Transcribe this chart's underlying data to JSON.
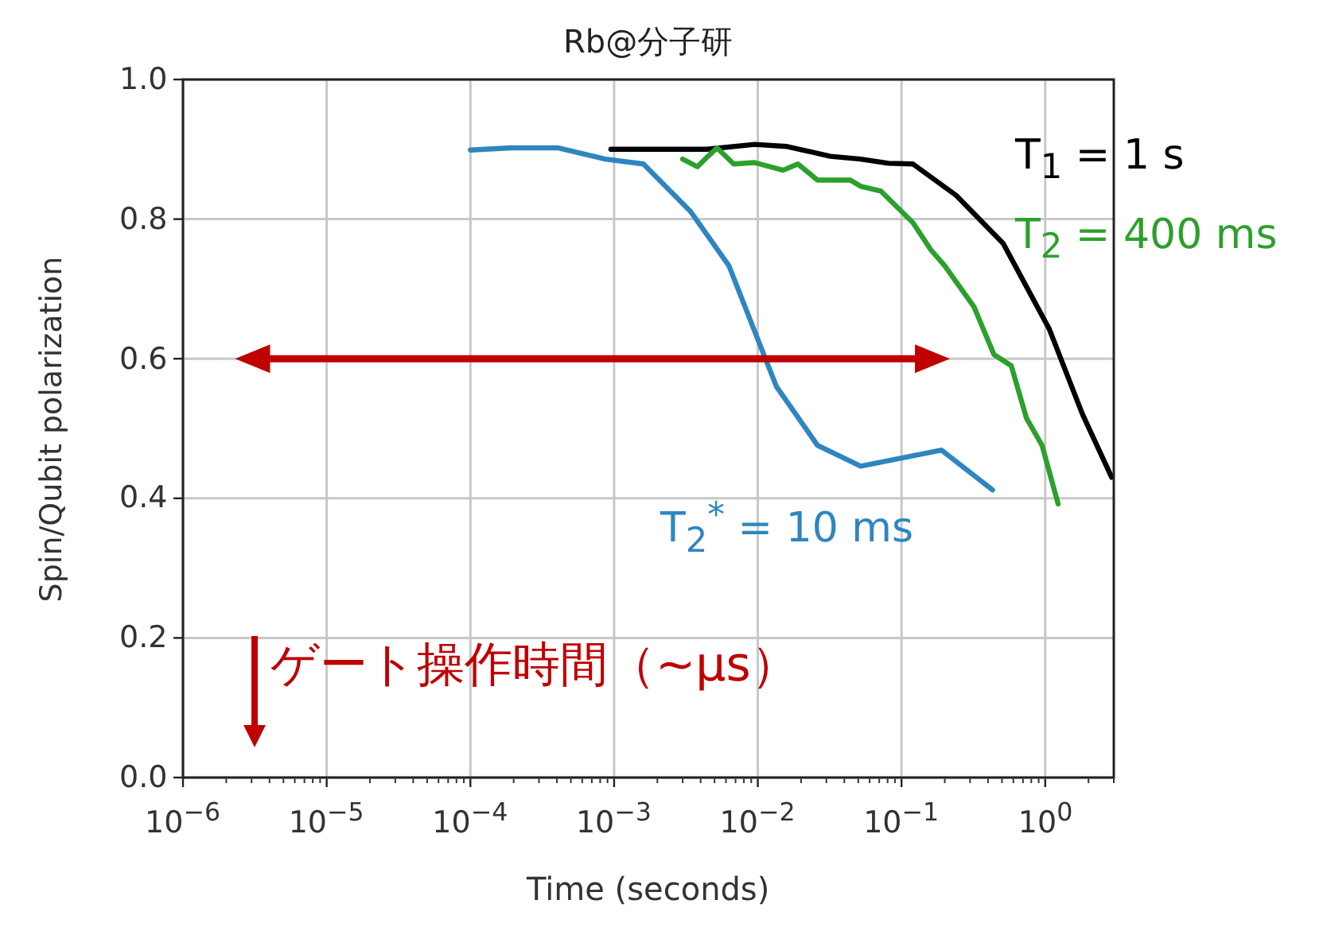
{
  "chart_data": {
    "type": "line",
    "title": "Rb@分子研",
    "xlabel": "Time (seconds)",
    "ylabel": "Spin/Qubit polarization",
    "log": "x",
    "grid": true,
    "line_style": "solid",
    "xlim": [
      1e-06,
      3
    ],
    "xticks": [
      {
        "value": 1e-06,
        "label": "10$^{−6}$"
      },
      {
        "value": 1e-05,
        "label": "10$^{−5}$"
      },
      {
        "value": 0.0001,
        "label": "10$^{−4}$"
      },
      {
        "value": 0.001,
        "label": "10$^{−3}$"
      },
      {
        "value": 0.01,
        "label": "10$^{−2}$"
      },
      {
        "value": 0.1,
        "label": "10$^{−1}$"
      },
      {
        "value": 1,
        "label": "10$^{0}$"
      }
    ],
    "ylim": [
      0,
      1
    ],
    "yticks": [
      {
        "value": 0,
        "label": "0.0"
      },
      {
        "value": 0.2,
        "label": "0.2"
      },
      {
        "value": 0.4,
        "label": "0.4"
      },
      {
        "value": 0.6,
        "label": "0.6"
      },
      {
        "value": 0.8,
        "label": "0.8"
      },
      {
        "value": 1,
        "label": "1.0"
      }
    ],
    "series": [
      {
        "name": "T$_{1}$ = 1 s",
        "color": "#000000",
        "x": [
          0.00095,
          0.0044,
          0.0095,
          0.016,
          0.032,
          0.052,
          0.081,
          0.12,
          0.24,
          0.51,
          1.07,
          1.82,
          2.9
        ],
        "values": [
          0.9,
          0.9,
          0.907,
          0.904,
          0.89,
          0.886,
          0.88,
          0.879,
          0.834,
          0.765,
          0.642,
          0.52,
          0.43
        ]
      },
      {
        "name": "T$_{2}$ = 400 ms",
        "color": "#2ca02c",
        "x": [
          0.003,
          0.0038,
          0.0045,
          0.0052,
          0.0068,
          0.0095,
          0.015,
          0.019,
          0.026,
          0.044,
          0.052,
          0.072,
          0.12,
          0.16,
          0.2,
          0.32,
          0.44,
          0.58,
          0.74,
          0.95,
          1.23
        ],
        "values": [
          0.886,
          0.875,
          0.89,
          0.902,
          0.879,
          0.881,
          0.87,
          0.879,
          0.856,
          0.856,
          0.847,
          0.84,
          0.795,
          0.756,
          0.733,
          0.674,
          0.606,
          0.59,
          0.515,
          0.476,
          0.392
        ]
      },
      {
        "name": "T$_{2}$$^{*}$ = 10 ms",
        "color": "#2e86c1",
        "x": [
          0.0001,
          0.00019,
          0.00041,
          0.00087,
          0.0016,
          0.0034,
          0.0063,
          0.011,
          0.0135,
          0.026,
          0.052,
          0.19,
          0.43
        ],
        "values": [
          0.899,
          0.902,
          0.902,
          0.886,
          0.879,
          0.811,
          0.733,
          0.606,
          0.56,
          0.476,
          0.446,
          0.469,
          0.412
        ]
      }
    ],
    "annotations": [
      "ゲート操作時間（~μs）"
    ]
  }
}
